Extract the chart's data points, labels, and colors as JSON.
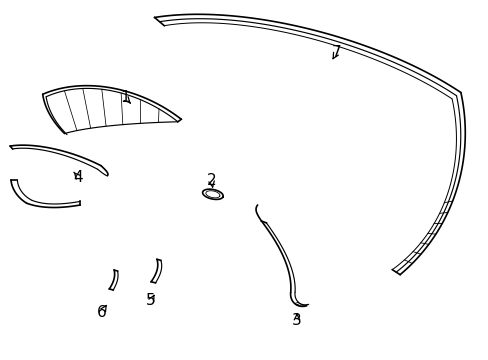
{
  "background_color": "#ffffff",
  "line_color": "#000000",
  "line_width": 1.2,
  "label_fontsize": 11
}
